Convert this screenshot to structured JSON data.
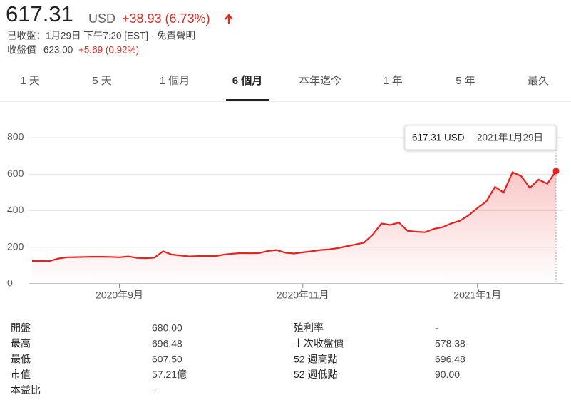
{
  "header": {
    "price": "617.31",
    "currency": "USD",
    "change": "+38.93 (6.73%)",
    "status": "已收盤：1月29日 下午7:20 [EST] · 免責聲明",
    "close_label": "收盤價",
    "close_price": "623.00",
    "close_change": "+5.69 (0.92%)"
  },
  "tabs": [
    "1 天",
    "5 天",
    "1 個月",
    "6 個月",
    "本年迄今",
    "1 年",
    "5 年",
    "最久"
  ],
  "selected_tab": 3,
  "tooltip": {
    "value": "617.31 USD",
    "date": "2021年1月29日"
  },
  "chart_data": {
    "type": "line",
    "color": "#e8211e",
    "categories": [
      null,
      null,
      null,
      null,
      null,
      null,
      null,
      null,
      null,
      null,
      "2020年9月",
      null,
      null,
      null,
      null,
      null,
      null,
      null,
      null,
      null,
      null,
      null,
      null,
      null,
      null,
      null,
      null,
      null,
      null,
      null,
      null,
      "2020年11月",
      null,
      null,
      null,
      null,
      null,
      null,
      null,
      null,
      null,
      null,
      null,
      null,
      null,
      null,
      null,
      null,
      null,
      null,
      null,
      "2021年1月",
      null,
      null,
      null,
      null,
      null,
      null,
      null,
      null,
      null
    ],
    "values": [
      125,
      125,
      124,
      138,
      145,
      146,
      147,
      148,
      148,
      147,
      145,
      150,
      142,
      140,
      143,
      178,
      160,
      155,
      150,
      152,
      152,
      152,
      160,
      165,
      168,
      167,
      168,
      180,
      185,
      170,
      166,
      172,
      178,
      185,
      188,
      195,
      205,
      215,
      225,
      268,
      330,
      322,
      335,
      290,
      285,
      282,
      300,
      310,
      330,
      345,
      375,
      415,
      450,
      530,
      500,
      610,
      590,
      525,
      570,
      548,
      617.31
    ],
    "ylim": [
      0,
      800
    ],
    "yticks": [
      0,
      200,
      400,
      600,
      800
    ],
    "grid": true
  },
  "stats": {
    "left": [
      [
        "開盤",
        "680.00"
      ],
      [
        "最高",
        "696.48"
      ],
      [
        "最低",
        "607.50"
      ],
      [
        "市值",
        "57.21億"
      ],
      [
        "本益比",
        "-"
      ]
    ],
    "right": [
      [
        "殖利率",
        "-"
      ],
      [
        "上次收盤價",
        "578.38"
      ],
      [
        "52 週高點",
        "696.48"
      ],
      [
        "52 週低點",
        "90.00"
      ]
    ]
  }
}
